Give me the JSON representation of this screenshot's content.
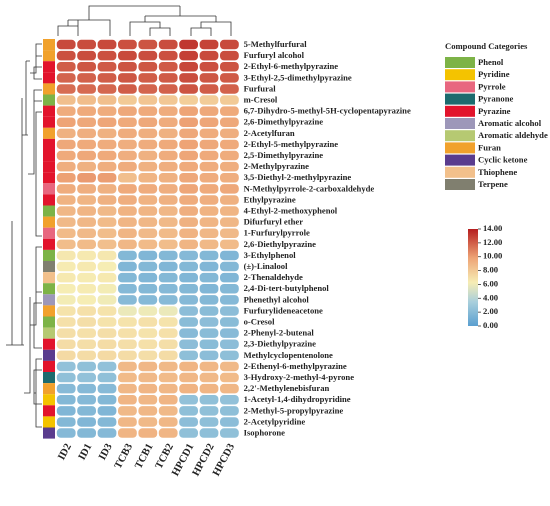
{
  "chart_data": {
    "type": "heatmap",
    "rows": [
      "5-Methylfurfural",
      "Furfuryl alcohol",
      "2-Ethyl-6-methylpyrazine",
      "3-Ethyl-2,5-dimethylpyrazine",
      "Furfural",
      "m-Cresol",
      "6,7-Dihydro-5-methyl-5H-cyclopentapyrazine",
      "2,6-Dimethylpyrazine",
      "2-Acetylfuran",
      "2-Ethyl-5-methylpyrazine",
      "2,5-Dimethylpyrazine",
      "2-Methylpyrazine",
      "3,5-Diethyl-2-methylpyrazine",
      "N-Methylpyrrole-2-carboxaldehyde",
      "Ethylpyrazine",
      "4-Ethyl-2-methoxyphenol",
      "Difurfuryl ether",
      "1-Furfurylpyrrole",
      "2,6-Diethylpyrazine",
      "3-Ethylphenol",
      "(±)-Linalool",
      "2-Thenaldehyde",
      "2,4-Di-tert-butylphenol",
      "Phenethyl alcohol",
      "Furfurylideneacetone",
      "o-Cresol",
      "2-Phenyl-2-butenal",
      "2,3-Diethylpyrazine",
      "Methylcyclopentenolone",
      "2-Ethenyl-6-methylpyrazine",
      "3-Hydroxy-2-methyl-4-pyrone",
      "2,2'-Methylenebisfuran",
      "1-Acetyl-1,4-dihydropyridine",
      "2-Methyl-5-propylpyrazine",
      "2-Acetylpyridine",
      "Isophorone"
    ],
    "columns": [
      "ID2",
      "ID1",
      "ID3",
      "TCB3",
      "TCB1",
      "TCB2",
      "HPCD1",
      "HPCD2",
      "HPCD3"
    ],
    "row_categories": [
      "Furan",
      "Furan",
      "Pyrazine",
      "Pyrazine",
      "Furan",
      "Phenol",
      "Pyrazine",
      "Pyrazine",
      "Furan",
      "Pyrazine",
      "Pyrazine",
      "Pyrazine",
      "Pyrazine",
      "Pyrrole",
      "Pyrazine",
      "Phenol",
      "Furan",
      "Pyrrole",
      "Pyrazine",
      "Phenol",
      "Terpene",
      "Thiophene",
      "Phenol",
      "Aromatic alcohol",
      "Furan",
      "Phenol",
      "Aromatic aldehyde",
      "Pyrazine",
      "Cyclic ketone",
      "Pyrazine",
      "Pyranone",
      "Furan",
      "Pyridine",
      "Pyrazine",
      "Pyridine",
      "Cyclic ketone"
    ],
    "values": [
      [
        12.6,
        12.5,
        12.6,
        12.4,
        12.3,
        12.5,
        13.2,
        12.8,
        12.6
      ],
      [
        12.4,
        12.5,
        12.4,
        12.6,
        12.5,
        12.4,
        12.9,
        12.6,
        12.5
      ],
      [
        12.0,
        12.2,
        12.1,
        12.3,
        12.2,
        12.1,
        12.7,
        12.4,
        12.3
      ],
      [
        11.8,
        11.9,
        12.0,
        12.2,
        12.0,
        12.1,
        12.5,
        12.2,
        12.1
      ],
      [
        11.5,
        11.6,
        11.7,
        12.0,
        11.8,
        11.9,
        12.3,
        12.0,
        11.9
      ],
      [
        8.5,
        8.6,
        8.5,
        8.0,
        8.2,
        8.1,
        7.8,
        7.9,
        8.0
      ],
      [
        9.4,
        9.5,
        9.4,
        9.6,
        9.5,
        9.4,
        9.8,
        9.6,
        9.5
      ],
      [
        9.8,
        9.6,
        9.7,
        9.5,
        9.6,
        9.4,
        9.9,
        9.7,
        9.6
      ],
      [
        9.2,
        9.3,
        9.2,
        9.4,
        9.3,
        9.2,
        9.6,
        9.4,
        9.3
      ],
      [
        9.6,
        9.5,
        9.4,
        9.3,
        9.4,
        9.5,
        9.8,
        9.6,
        9.5
      ],
      [
        9.5,
        9.6,
        9.5,
        9.3,
        9.2,
        9.4,
        9.7,
        9.5,
        9.4
      ],
      [
        9.3,
        9.2,
        9.3,
        9.4,
        9.2,
        9.3,
        9.5,
        9.4,
        9.3
      ],
      [
        9.9,
        10.1,
        10.0,
        8.5,
        9.0,
        9.2,
        9.6,
        9.4,
        9.3
      ],
      [
        9.4,
        9.3,
        9.2,
        9.5,
        9.4,
        9.3,
        9.7,
        9.5,
        9.6
      ],
      [
        9.1,
        9.0,
        9.2,
        9.3,
        9.1,
        9.2,
        9.4,
        9.3,
        9.2
      ],
      [
        8.9,
        9.0,
        8.8,
        9.1,
        9.0,
        8.9,
        9.3,
        9.1,
        9.0
      ],
      [
        8.8,
        8.9,
        8.7,
        9.0,
        8.9,
        8.8,
        9.2,
        9.0,
        8.9
      ],
      [
        8.7,
        8.8,
        8.6,
        9.0,
        8.8,
        8.7,
        9.1,
        8.9,
        8.8
      ],
      [
        8.6,
        8.7,
        8.5,
        8.9,
        8.7,
        8.6,
        9.0,
        8.8,
        8.7
      ],
      [
        6.6,
        6.5,
        6.6,
        1.8,
        1.7,
        1.8,
        1.9,
        1.8,
        1.7
      ],
      [
        6.4,
        6.5,
        6.3,
        1.7,
        1.8,
        1.7,
        1.8,
        1.7,
        1.8
      ],
      [
        6.5,
        6.4,
        6.5,
        1.8,
        1.7,
        1.8,
        1.7,
        1.8,
        1.7
      ],
      [
        6.3,
        6.4,
        6.2,
        1.9,
        1.8,
        1.9,
        1.8,
        1.7,
        1.8
      ],
      [
        6.2,
        6.3,
        6.1,
        2.0,
        1.9,
        2.0,
        1.9,
        1.8,
        1.9
      ],
      [
        6.8,
        6.9,
        6.8,
        5.9,
        6.0,
        5.9,
        2.2,
        2.1,
        2.2
      ],
      [
        6.9,
        7.0,
        6.8,
        6.8,
        6.9,
        6.8,
        2.1,
        2.2,
        2.1
      ],
      [
        7.0,
        6.9,
        7.0,
        6.9,
        6.8,
        6.9,
        2.0,
        2.1,
        2.0
      ],
      [
        7.1,
        7.0,
        7.1,
        7.0,
        6.9,
        7.0,
        2.2,
        2.1,
        2.2
      ],
      [
        7.2,
        7.1,
        7.2,
        7.1,
        7.0,
        7.1,
        2.3,
        2.2,
        2.3
      ],
      [
        2.5,
        2.4,
        2.5,
        8.8,
        8.9,
        8.8,
        9.0,
        8.9,
        8.8
      ],
      [
        2.4,
        2.5,
        2.4,
        8.7,
        8.8,
        8.7,
        8.9,
        8.8,
        8.7
      ],
      [
        2.0,
        1.9,
        2.0,
        8.9,
        9.0,
        8.9,
        9.1,
        9.0,
        8.9
      ],
      [
        1.8,
        1.9,
        1.8,
        9.0,
        8.9,
        9.0,
        2.5,
        2.4,
        2.5
      ],
      [
        1.7,
        1.8,
        1.7,
        8.8,
        8.9,
        8.8,
        2.3,
        2.4,
        2.3
      ],
      [
        1.8,
        1.7,
        1.8,
        8.9,
        8.8,
        8.9,
        2.2,
        2.3,
        2.2
      ],
      [
        1.9,
        1.8,
        1.9,
        9.0,
        9.1,
        9.0,
        2.4,
        2.3,
        2.4
      ]
    ],
    "legend_title": "Compound Categories",
    "categories": [
      {
        "name": "Phenol",
        "color": "#7db347"
      },
      {
        "name": "Pyridine",
        "color": "#f4c300"
      },
      {
        "name": "Pyrrole",
        "color": "#e8677f"
      },
      {
        "name": "Pyranone",
        "color": "#1d6b6e"
      },
      {
        "name": "Pyrazine",
        "color": "#e2142c"
      },
      {
        "name": "Aromatic alcohol",
        "color": "#9d97b9"
      },
      {
        "name": "Aromatic aldehyde",
        "color": "#b6c972"
      },
      {
        "name": "Furan",
        "color": "#f1a12c"
      },
      {
        "name": "Cyclic ketone",
        "color": "#5a3c8e"
      },
      {
        "name": "Thiophene",
        "color": "#f2c08b"
      },
      {
        "name": "Terpene",
        "color": "#807f6f"
      }
    ],
    "colorbar_lim": [
      0,
      14
    ],
    "colorbar_ticks": [
      {
        "value": 0,
        "label": "0.00"
      },
      {
        "value": 2,
        "label": "2.00"
      },
      {
        "value": 4,
        "label": "4.00"
      },
      {
        "value": 6,
        "label": "6.00"
      },
      {
        "value": 8,
        "label": "8.00"
      },
      {
        "value": 10,
        "label": "10.00"
      },
      {
        "value": 12,
        "label": "12.00"
      },
      {
        "value": 14,
        "label": "14.00"
      }
    ]
  }
}
